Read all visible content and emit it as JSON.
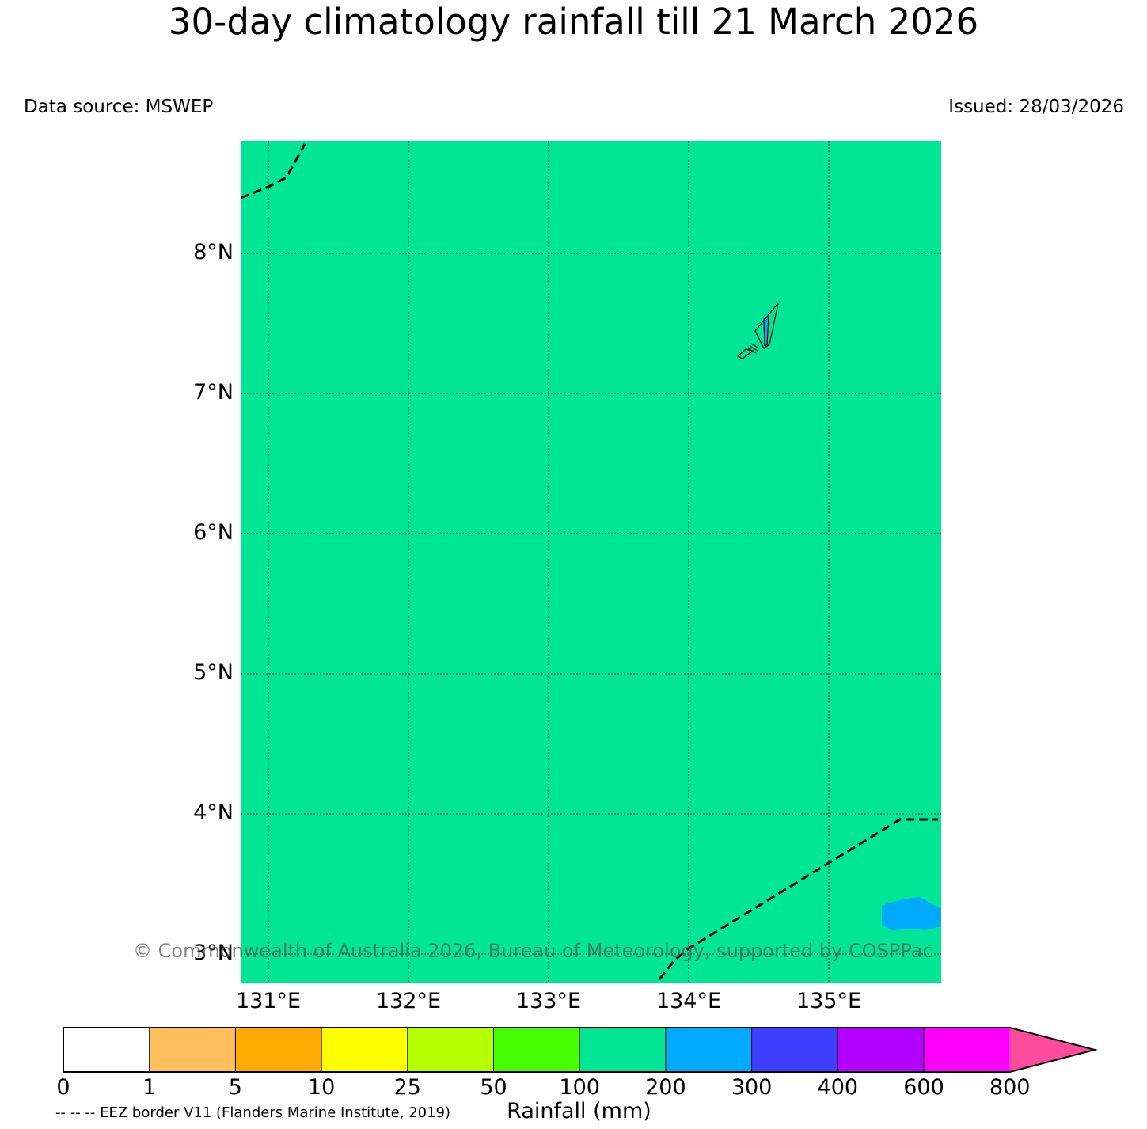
{
  "title": "30-day climatology rainfall till 21 March 2026",
  "data_source": "Data source: MSWEP",
  "issued": "Issued: 28/03/2026",
  "map": {
    "lat_labels": [
      "8°N",
      "7°N",
      "6°N",
      "5°N",
      "4°N",
      "3°N"
    ],
    "lon_labels": [
      "131°E",
      "132°E",
      "133°E",
      "134°E",
      "135°E"
    ],
    "fill_color": "#00e696",
    "patch_color": "#00aaff"
  },
  "copyright": "© Commonwealth of Australia 2026, Bureau of Meteorology, supported by COSPPac",
  "colorbar": {
    "label": "Rainfall (mm)",
    "ticks": [
      "0",
      "1",
      "5",
      "10",
      "25",
      "50",
      "100",
      "200",
      "300",
      "400",
      "600",
      "800"
    ],
    "colors": [
      "#ffffff",
      "#ffbf5c",
      "#ffaa00",
      "#ffff00",
      "#b4ff00",
      "#46ff00",
      "#00e696",
      "#00aaff",
      "#3e3eff",
      "#b300ff",
      "#ff00ff",
      "#ff4b9b"
    ]
  },
  "legend_note": "-- -- -- EEZ border V11 (Flanders Marine Institute, 2019)"
}
